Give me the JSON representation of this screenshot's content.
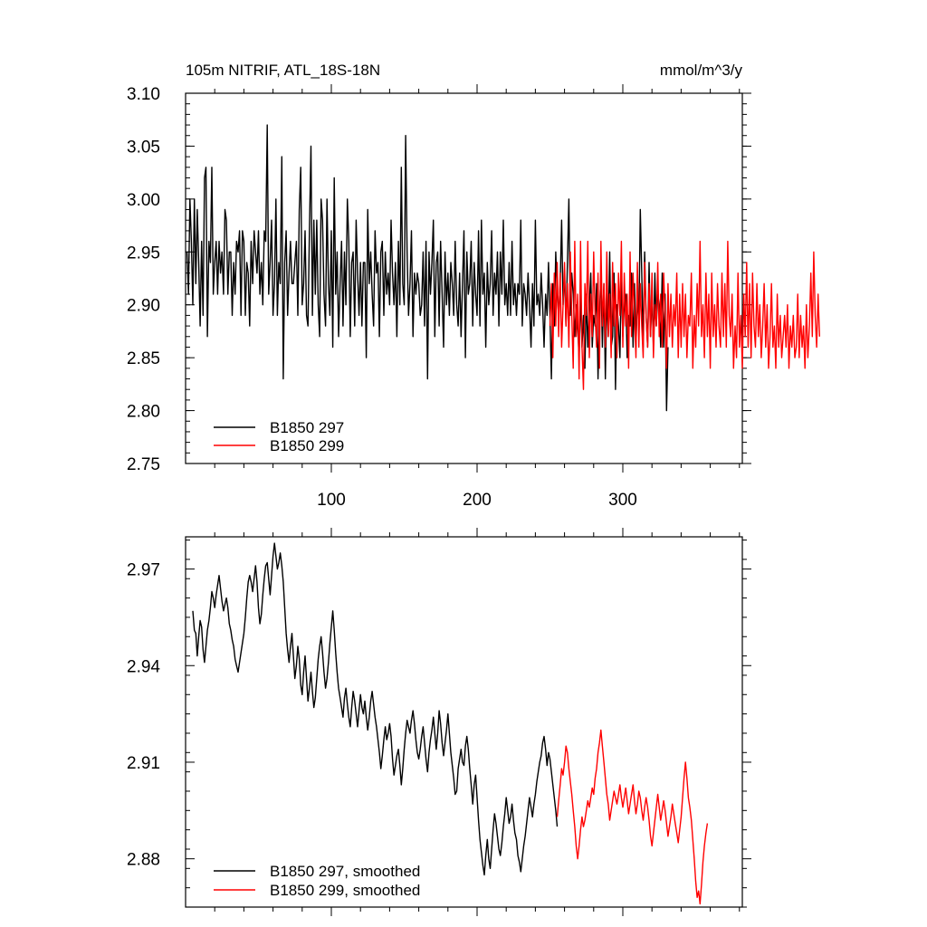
{
  "chart_data": [
    {
      "type": "line",
      "title": "105m NITRIF, ATL_18S-18N",
      "units": "mmol/m^3/y",
      "xlim": [
        0,
        382
      ],
      "ylim": [
        2.75,
        3.1
      ],
      "x_ticks": [
        100,
        200,
        300
      ],
      "y_ticks": [
        "2.75",
        "2.80",
        "2.85",
        "2.90",
        "2.95",
        "3.00",
        "3.05",
        "3.10"
      ],
      "legend_position": "bottom-left",
      "series": [
        {
          "name": "B1850 297",
          "color": "#000000",
          "x_start": 1,
          "values": [
            2.95,
            2.91,
            3.0,
            2.96,
            2.9,
            3.0,
            2.92,
            2.99,
            2.94,
            2.88,
            2.96,
            2.89,
            3.02,
            3.03,
            2.87,
            2.96,
            2.94,
            3.03,
            2.91,
            2.94,
            2.96,
            2.91,
            2.96,
            2.93,
            2.95,
            2.91,
            2.99,
            2.98,
            2.91,
            2.95,
            2.95,
            2.89,
            2.94,
            2.91,
            2.96,
            2.95,
            2.97,
            2.89,
            2.97,
            2.96,
            2.89,
            2.94,
            2.93,
            2.88,
            2.96,
            2.92,
            2.97,
            2.95,
            2.93,
            2.97,
            2.91,
            2.94,
            2.9,
            2.97,
            2.96,
            3.07,
            2.91,
            2.94,
            2.98,
            2.89,
            2.92,
            3.0,
            2.89,
            2.94,
            2.92,
            3.04,
            2.83,
            2.94,
            2.97,
            2.89,
            2.93,
            2.96,
            2.92,
            2.92,
            2.94,
            2.96,
            2.89,
            2.99,
            3.03,
            2.9,
            2.92,
            2.97,
            2.89,
            2.88,
            2.97,
            3.05,
            2.89,
            2.98,
            2.91,
            2.98,
            2.9,
            2.87,
            3.0,
            2.98,
            2.91,
            2.88,
            3.0,
            2.92,
            2.89,
            2.97,
            2.86,
            3.02,
            2.91,
            2.95,
            2.87,
            2.92,
            2.96,
            2.88,
            2.95,
            2.9,
            3.0,
            2.96,
            2.87,
            2.94,
            2.95,
            2.88,
            2.98,
            2.93,
            2.89,
            2.94,
            2.88,
            2.94,
            2.94,
            2.85,
            2.99,
            2.92,
            2.95,
            2.91,
            2.88,
            2.97,
            2.93,
            2.94,
            2.87,
            2.95,
            2.96,
            2.89,
            2.95,
            2.91,
            2.93,
            2.9,
            2.98,
            2.93,
            2.9,
            2.94,
            2.87,
            2.96,
            2.9,
            3.03,
            2.92,
            2.9,
            3.06,
            2.95,
            2.89,
            2.92,
            2.97,
            2.87,
            2.93,
            2.91,
            2.93,
            2.92,
            2.89,
            2.9,
            2.95,
            2.88,
            2.96,
            2.83,
            2.95,
            2.91,
            2.94,
            2.98,
            2.87,
            2.94,
            2.95,
            2.88,
            2.96,
            2.91,
            2.86,
            2.95,
            2.9,
            2.93,
            2.89,
            2.94,
            2.92,
            2.89,
            2.96,
            2.9,
            2.88,
            2.93,
            2.87,
            2.92,
            2.97,
            2.85,
            2.95,
            2.91,
            2.92,
            2.96,
            2.88,
            2.94,
            2.91,
            2.89,
            2.97,
            2.88,
            2.98,
            2.91,
            2.93,
            2.86,
            2.94,
            2.9,
            2.92,
            2.97,
            2.89,
            2.93,
            2.91,
            2.95,
            2.88,
            2.95,
            2.91,
            2.98,
            2.9,
            2.92,
            2.89,
            2.94,
            2.89,
            2.96,
            2.9,
            2.92,
            2.89,
            2.92,
            2.91,
            2.98,
            2.88,
            2.92,
            2.91,
            2.89,
            2.93,
            2.9,
            2.86,
            2.92,
            2.88,
            2.98,
            2.9,
            2.91,
            2.89,
            2.93,
            2.9,
            2.86,
            2.91,
            2.89,
            2.94,
            2.89,
            2.83,
            2.92,
            2.88,
            2.95,
            2.91,
            2.89,
            2.92,
            2.98,
            2.9,
            2.93,
            2.88,
            2.94,
            3.0,
            2.89,
            2.93,
            2.91,
            2.87,
            2.9,
            2.88,
            2.85,
            2.91,
            2.86,
            2.89,
            2.84,
            2.91,
            2.86,
            2.9,
            2.93,
            2.86,
            2.89,
            2.88,
            2.92,
            2.83,
            2.89,
            2.93,
            2.86,
            2.92,
            2.83,
            2.91,
            2.87,
            2.95,
            2.86,
            2.87,
            2.93,
            2.82,
            2.9,
            2.88,
            2.85,
            2.93,
            2.87,
            2.9,
            2.91,
            2.85,
            2.89,
            2.88,
            2.93,
            2.86,
            2.92,
            2.86,
            2.91,
            2.88,
            2.99,
            2.93,
            2.86,
            2.95,
            2.89,
            2.86,
            2.94,
            2.87,
            2.91,
            2.86,
            2.93,
            2.88,
            2.91,
            2.9,
            2.86,
            2.93,
            2.86,
            2.91,
            2.8,
            2.86
          ]
        },
        {
          "name": "B1850 299",
          "color": "#ff0000",
          "x_start": 250,
          "values": [
            2.88,
            2.92,
            2.85,
            2.93,
            2.88,
            2.94,
            2.87,
            2.93,
            2.86,
            2.9,
            2.94,
            2.88,
            2.92,
            2.86,
            2.95,
            2.89,
            2.84,
            2.96,
            2.87,
            2.91,
            2.83,
            2.96,
            2.86,
            2.82,
            2.92,
            2.89,
            2.96,
            2.85,
            2.91,
            2.87,
            2.95,
            2.89,
            2.86,
            2.93,
            2.84,
            2.96,
            2.88,
            2.92,
            2.86,
            2.95,
            2.87,
            2.91,
            2.85,
            2.94,
            2.88,
            2.92,
            2.85,
            2.93,
            2.89,
            2.96,
            2.86,
            2.93,
            2.88,
            2.91,
            2.84,
            2.95,
            2.87,
            2.93,
            2.89,
            2.85,
            2.94,
            2.86,
            2.92,
            2.88,
            2.85,
            2.94,
            2.89,
            2.86,
            2.92,
            2.87,
            2.93,
            2.85,
            2.9,
            2.88,
            2.94,
            2.87,
            2.91,
            2.86,
            2.93,
            2.89,
            2.84,
            2.92,
            2.87,
            2.91,
            2.86,
            2.9,
            2.88,
            2.93,
            2.85,
            2.91,
            2.86,
            2.92,
            2.87,
            2.91,
            2.85,
            2.89,
            2.88,
            2.93,
            2.84,
            2.89,
            2.86,
            2.92,
            2.88,
            2.96,
            2.87,
            2.9,
            2.85,
            2.93,
            2.87,
            2.91,
            2.84,
            2.93,
            2.87,
            2.9,
            2.86,
            2.92,
            2.88,
            2.86,
            2.93,
            2.87,
            2.92,
            2.86,
            2.96,
            2.89,
            2.87,
            2.91,
            2.84,
            2.88,
            2.85,
            2.93,
            2.86,
            2.89,
            2.84,
            2.91,
            2.87,
            2.94,
            2.86,
            2.92,
            2.85,
            2.93,
            2.88,
            2.86,
            2.92,
            2.87,
            2.9,
            2.85,
            2.88,
            2.92,
            2.86,
            2.9,
            2.84,
            2.87,
            2.92,
            2.86,
            2.88,
            2.84,
            2.91,
            2.86,
            2.89,
            2.85,
            2.87,
            2.89,
            2.86,
            2.9,
            2.84,
            2.88,
            2.86,
            2.89,
            2.85,
            2.86,
            2.91,
            2.85,
            2.89,
            2.86,
            2.88,
            2.84,
            2.9,
            2.85,
            2.88,
            2.93,
            2.87,
            2.95,
            2.89,
            2.86,
            2.91,
            2.87
          ]
        }
      ]
    },
    {
      "type": "line",
      "xlim": [
        0,
        382
      ],
      "ylim": [
        2.865,
        2.98
      ],
      "y_ticks": [
        "2.88",
        "2.91",
        "2.94",
        "2.97"
      ],
      "legend_position": "bottom-left",
      "series": [
        {
          "name": "B1850 297, smoothed",
          "color": "#000000",
          "x_start": 5,
          "values": [
            2.957,
            2.951,
            2.95,
            2.943,
            2.949,
            2.954,
            2.952,
            2.945,
            2.941,
            2.946,
            2.951,
            2.954,
            2.958,
            2.963,
            2.961,
            2.958,
            2.962,
            2.965,
            2.968,
            2.964,
            2.96,
            2.957,
            2.959,
            2.961,
            2.958,
            2.953,
            2.951,
            2.948,
            2.946,
            2.942,
            2.94,
            2.938,
            2.941,
            2.944,
            2.947,
            2.95,
            2.955,
            2.961,
            2.966,
            2.968,
            2.966,
            2.963,
            2.967,
            2.971,
            2.966,
            2.958,
            2.953,
            2.956,
            2.962,
            2.967,
            2.971,
            2.972,
            2.967,
            2.962,
            2.968,
            2.974,
            2.978,
            2.974,
            2.97,
            2.972,
            2.975,
            2.971,
            2.966,
            2.958,
            2.95,
            2.945,
            2.941,
            2.946,
            2.95,
            2.943,
            2.936,
            2.94,
            2.946,
            2.942,
            2.934,
            2.931,
            2.938,
            2.943,
            2.936,
            2.929,
            2.933,
            2.938,
            2.932,
            2.927,
            2.93,
            2.936,
            2.942,
            2.946,
            2.949,
            2.944,
            2.938,
            2.933,
            2.936,
            2.941,
            2.947,
            2.952,
            2.957,
            2.951,
            2.944,
            2.938,
            2.933,
            2.93,
            2.927,
            2.924,
            2.93,
            2.933,
            2.928,
            2.924,
            2.921,
            2.927,
            2.932,
            2.929,
            2.925,
            2.921,
            2.926,
            2.931,
            2.927,
            2.925,
            2.929,
            2.924,
            2.92,
            2.924,
            2.929,
            2.932,
            2.928,
            2.924,
            2.921,
            2.917,
            2.913,
            2.908,
            2.912,
            2.917,
            2.921,
            2.917,
            2.919,
            2.922,
            2.918,
            2.911,
            2.906,
            2.909,
            2.912,
            2.914,
            2.909,
            2.903,
            2.908,
            2.914,
            2.919,
            2.923,
            2.921,
            2.919,
            2.923,
            2.926,
            2.922,
            2.917,
            2.913,
            2.911,
            2.914,
            2.918,
            2.921,
            2.916,
            2.911,
            2.907,
            2.913,
            2.917,
            2.92,
            2.924,
            2.919,
            2.914,
            2.919,
            2.926,
            2.922,
            2.916,
            2.912,
            2.916,
            2.92,
            2.925,
            2.919,
            2.913,
            2.909,
            2.905,
            2.9,
            2.901,
            2.908,
            2.911,
            2.914,
            2.91,
            2.909,
            2.915,
            2.918,
            2.914,
            2.908,
            2.903,
            2.897,
            2.903,
            2.906,
            2.899,
            2.892,
            2.886,
            2.882,
            2.878,
            2.875,
            2.881,
            2.886,
            2.88,
            2.877,
            2.883,
            2.889,
            2.894,
            2.891,
            2.887,
            2.883,
            2.881,
            2.885,
            2.89,
            2.894,
            2.899,
            2.895,
            2.891,
            2.893,
            2.897,
            2.892,
            2.888,
            2.886,
            2.881,
            2.879,
            2.876,
            2.88,
            2.884,
            2.887,
            2.891,
            2.895,
            2.899,
            2.896,
            2.893,
            2.897,
            2.9,
            2.904,
            2.907,
            2.91,
            2.912,
            2.916,
            2.918,
            2.914,
            2.909,
            2.913,
            2.911,
            2.907,
            2.903,
            2.899,
            2.895,
            2.89
          ]
        },
        {
          "name": "B1850 299, smoothed",
          "color": "#ff0000",
          "x_start": 255,
          "values": [
            2.893,
            2.898,
            2.903,
            2.908,
            2.906,
            2.91,
            2.915,
            2.913,
            2.908,
            2.904,
            2.9,
            2.895,
            2.89,
            2.884,
            2.88,
            2.884,
            2.889,
            2.893,
            2.89,
            2.892,
            2.895,
            2.898,
            2.896,
            2.899,
            2.902,
            2.9,
            2.905,
            2.908,
            2.913,
            2.916,
            2.92,
            2.915,
            2.91,
            2.905,
            2.9,
            2.897,
            2.892,
            2.895,
            2.898,
            2.901,
            2.899,
            2.897,
            2.9,
            2.903,
            2.899,
            2.896,
            2.899,
            2.902,
            2.898,
            2.894,
            2.897,
            2.9,
            2.903,
            2.898,
            2.894,
            2.897,
            2.901,
            2.899,
            2.895,
            2.892,
            2.896,
            2.899,
            2.896,
            2.892,
            2.887,
            2.884,
            2.888,
            2.892,
            2.896,
            2.9,
            2.896,
            2.892,
            2.895,
            2.898,
            2.895,
            2.891,
            2.887,
            2.89,
            2.893,
            2.897,
            2.894,
            2.891,
            2.888,
            2.885,
            2.889,
            2.893,
            2.899,
            2.905,
            2.91,
            2.905,
            2.899,
            2.896,
            2.892,
            2.886,
            2.88,
            2.873,
            2.868,
            2.87,
            2.866,
            2.872,
            2.879,
            2.884,
            2.888,
            2.891
          ]
        }
      ]
    }
  ]
}
